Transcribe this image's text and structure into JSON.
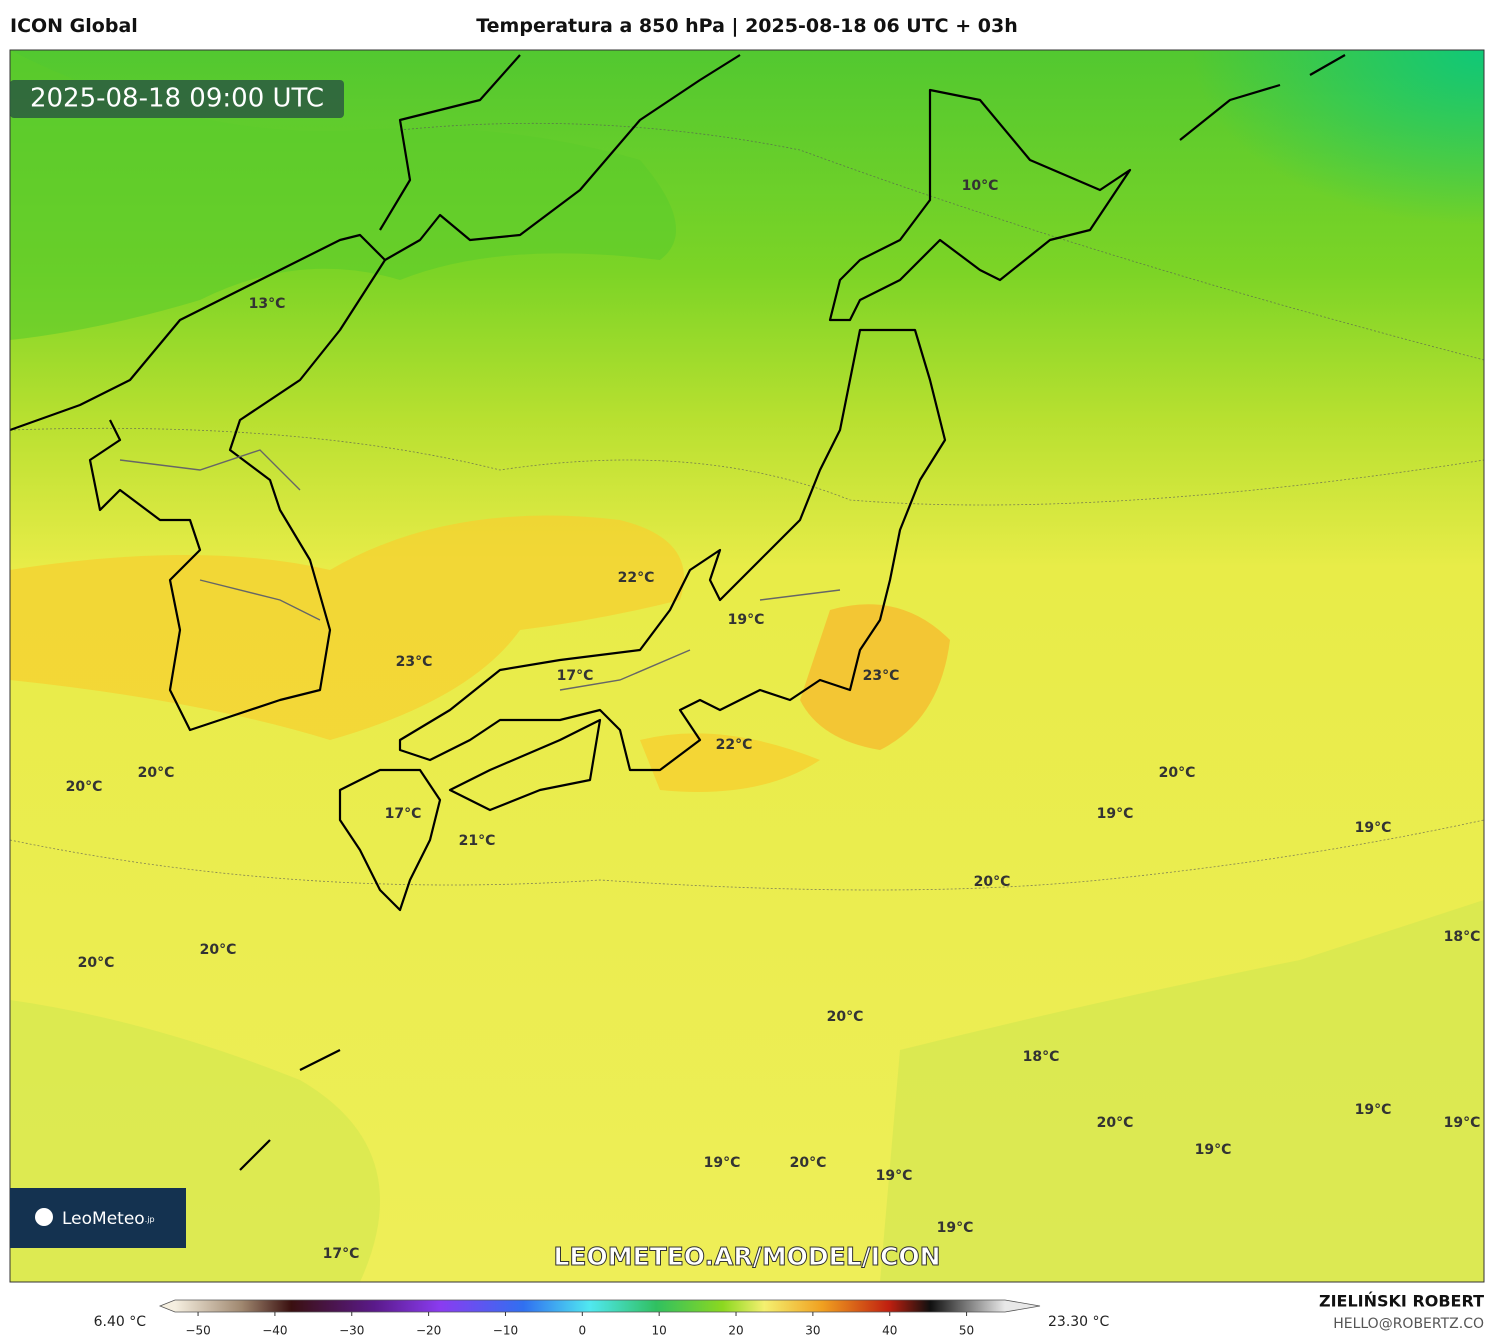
{
  "header": {
    "model": "ICON Global",
    "title": "Temperatura a 850 hPa | 2025-08-18 06 UTC + 03h"
  },
  "timestamp": "2025-08-18 09:00 UTC",
  "labels": [
    "13°C",
    "10°C",
    "22°C",
    "19°C",
    "23°C",
    "17°C",
    "23°C",
    "22°C",
    "20°C",
    "20°C",
    "20°C",
    "17°C",
    "21°C",
    "19°C",
    "19°C",
    "20°C",
    "20°C",
    "20°C",
    "18°C",
    "20°C",
    "18°C",
    "19°C",
    "20°C",
    "19°C",
    "19°C",
    "19°C",
    "20°C",
    "19°C",
    "19°C",
    "17°C"
  ],
  "logo": {
    "name": "LeoMeteo",
    "suffix": ".jp"
  },
  "watermark": "LEOMETEO.AR/MODEL/ICON",
  "colorbar": {
    "min_label": "6.40 °C",
    "max_label": "23.30 °C",
    "lim": [
      -53,
      55
    ],
    "ticks": [
      {
        "value": -50,
        "label": "−50"
      },
      {
        "value": -40,
        "label": "−40"
      },
      {
        "value": -30,
        "label": "−30"
      },
      {
        "value": -20,
        "label": "−20"
      },
      {
        "value": -10,
        "label": "−10"
      },
      0,
      10,
      20,
      30,
      40,
      50
    ]
  },
  "footer": {
    "author": "ZIELIŃSKI ROBERT",
    "email": "HELLO@ROBERTZ.CO"
  }
}
